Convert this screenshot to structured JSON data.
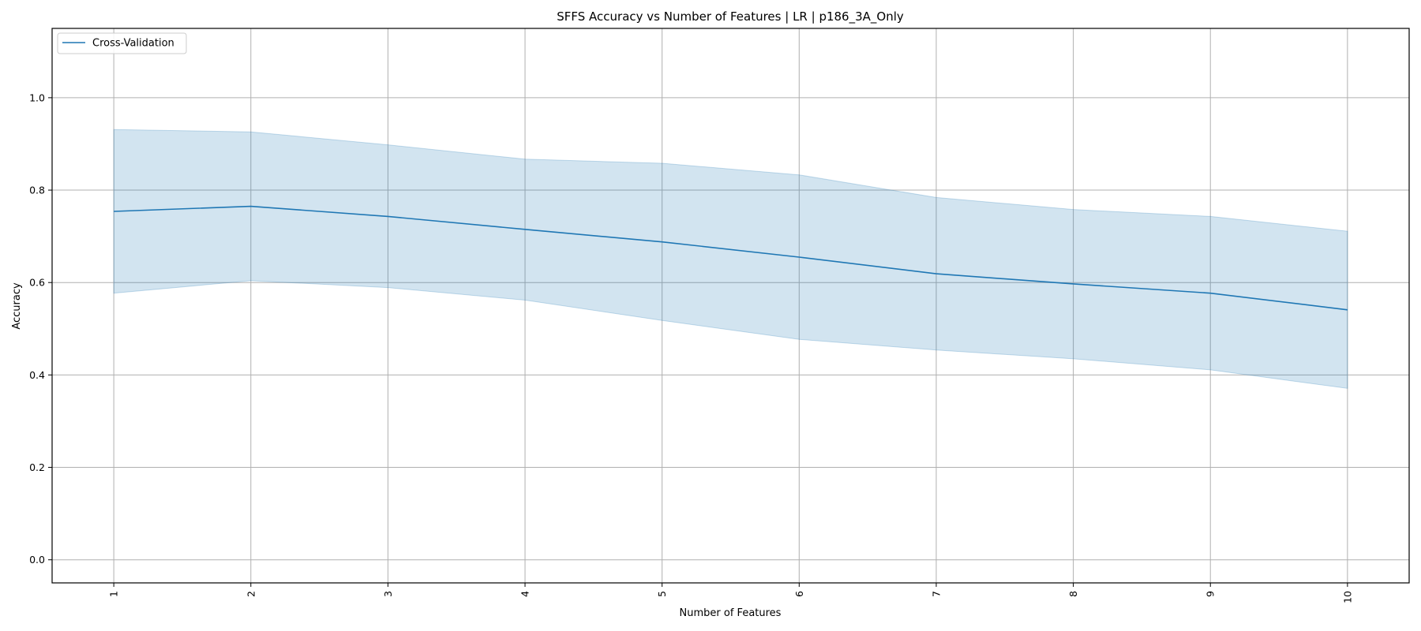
{
  "chart_data": {
    "type": "line",
    "title": "SFFS Accuracy vs Number of Features | LR | p186_3A_Only",
    "xlabel": "Number of Features",
    "ylabel": "Accuracy",
    "x": [
      1,
      2,
      3,
      4,
      5,
      6,
      7,
      8,
      9,
      10
    ],
    "x_tick_labels": [
      "1",
      "2",
      "3",
      "4",
      "5",
      "6",
      "7",
      "8",
      "9",
      "10"
    ],
    "y_ticks": [
      0.0,
      0.2,
      0.4,
      0.6,
      0.8,
      1.0
    ],
    "y_tick_labels": [
      "0.0",
      "0.2",
      "0.4",
      "0.6",
      "0.8",
      "1.0"
    ],
    "xlim": [
      0.55,
      10.45
    ],
    "ylim": [
      -0.05,
      1.15
    ],
    "grid": true,
    "legend_position": "top-left",
    "series": [
      {
        "name": "Cross-Validation",
        "color": "#1f77b4",
        "values": [
          0.754,
          0.765,
          0.743,
          0.715,
          0.688,
          0.655,
          0.619,
          0.597,
          0.577,
          0.541
        ],
        "band_upper": [
          0.931,
          0.926,
          0.898,
          0.867,
          0.858,
          0.833,
          0.784,
          0.758,
          0.743,
          0.711
        ],
        "band_lower": [
          0.577,
          0.604,
          0.589,
          0.562,
          0.518,
          0.477,
          0.454,
          0.435,
          0.411,
          0.371
        ],
        "band_color": "#1f77b4"
      }
    ]
  }
}
